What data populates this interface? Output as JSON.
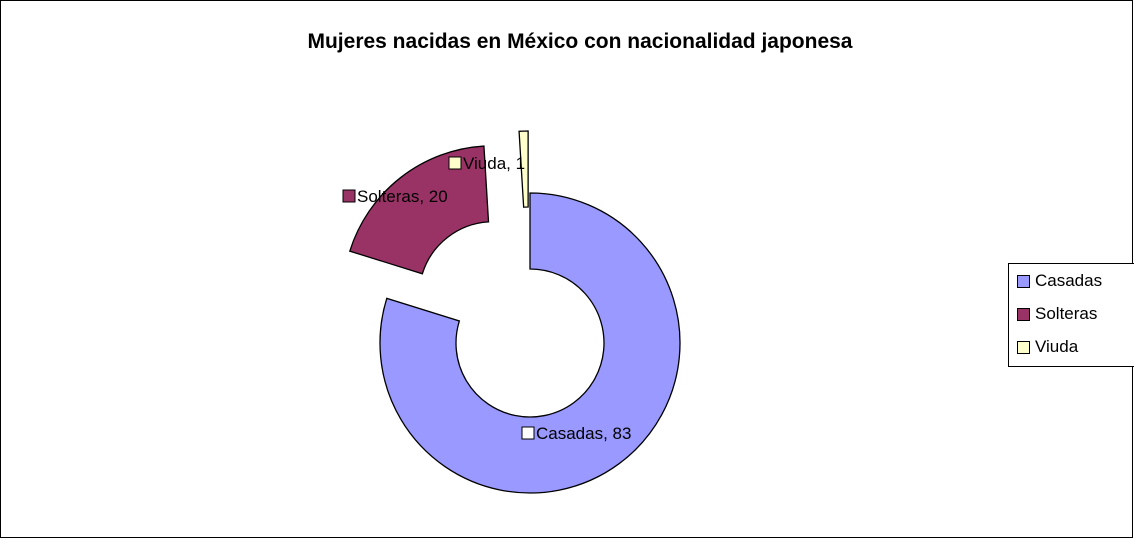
{
  "chart_data": {
    "type": "pie",
    "title": "Mujeres nacidas en México con nacionalidad japonesa",
    "categories": [
      "Casadas",
      "Solteras",
      "Viuda"
    ],
    "values": [
      83,
      20,
      1
    ],
    "colors": [
      "#9999FF",
      "#993366",
      "#FFFFCC"
    ],
    "data_labels": [
      "Casadas, 83",
      "Solteras, 20",
      "Viuda, 1"
    ],
    "legend_position": "right",
    "style": "exploded doughnut"
  }
}
